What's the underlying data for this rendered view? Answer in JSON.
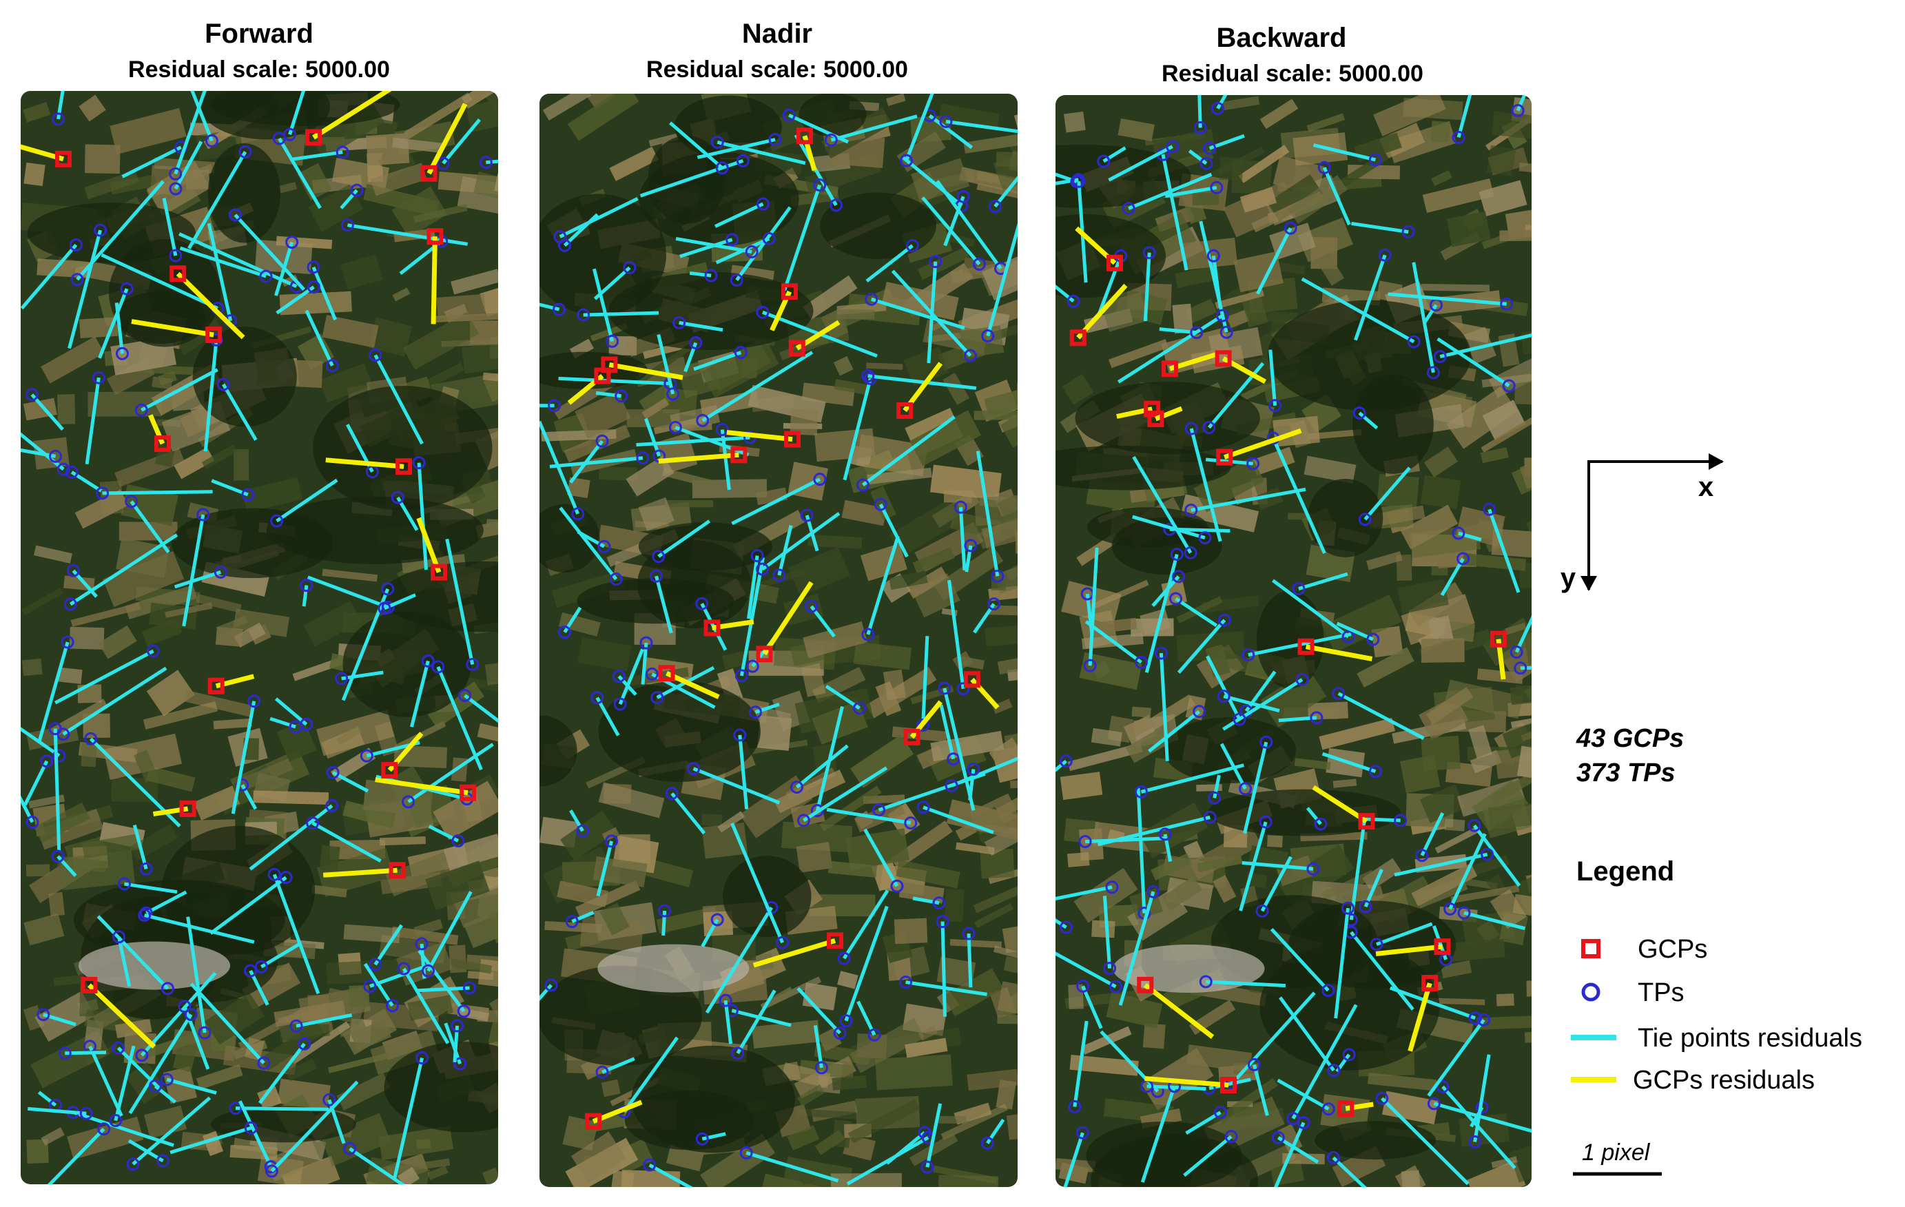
{
  "panels": [
    {
      "title": "Forward",
      "subtitle": "Residual scale: 5000.00"
    },
    {
      "title": "Nadir",
      "subtitle": "Residual scale: 5000.00"
    },
    {
      "title": "Backward",
      "subtitle": "Residual scale: 5000.00"
    }
  ],
  "axes": {
    "x": "x",
    "y": "y"
  },
  "stats": [
    "43 GCPs",
    "373 TPs"
  ],
  "legend": {
    "title": "Legend",
    "items": [
      "GCPs",
      "TPs",
      "Tie points residuals",
      "GCPs residuals"
    ]
  },
  "scale_bar": "1 pixel"
}
